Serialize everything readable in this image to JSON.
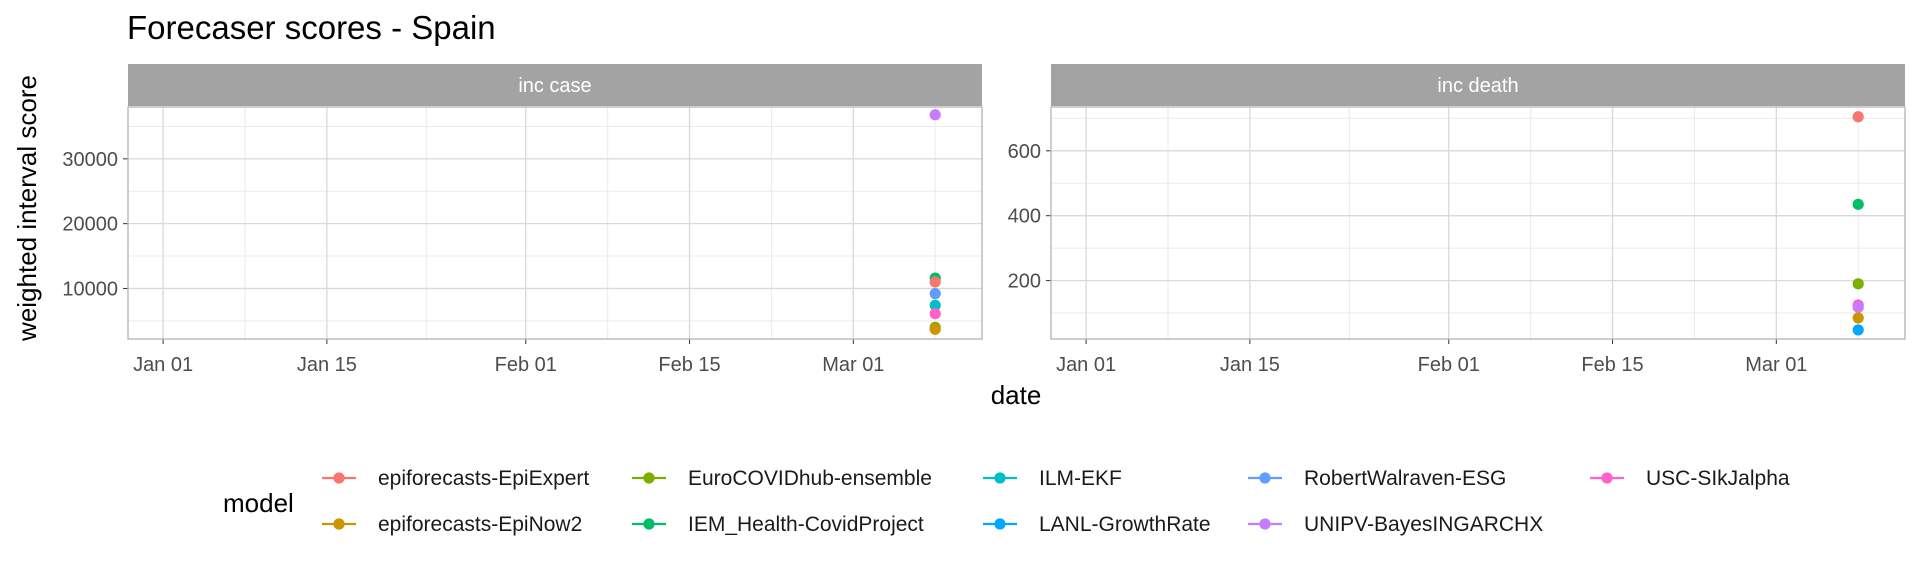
{
  "chart_data": {
    "type": "scatter",
    "title": "Forecaser scores - Spain",
    "xlabel": "date",
    "ylabel": "weighted interval score",
    "x_ticks": [
      "Jan 01",
      "Jan 15",
      "Feb 01",
      "Feb 15",
      "Mar 01"
    ],
    "x_range": [
      "2020-12-29",
      "2021-03-12"
    ],
    "grid": true,
    "legend": {
      "title": "model",
      "placement": "bottom",
      "entries": [
        {
          "name": "epiforecasts-EpiExpert",
          "color": "#F8766D"
        },
        {
          "name": "epiforecasts-EpiNow2",
          "color": "#CD9600"
        },
        {
          "name": "EuroCOVIDhub-ensemble",
          "color": "#7CAE00"
        },
        {
          "name": "IEM_Health-CovidProject",
          "color": "#00BE67"
        },
        {
          "name": "ILM-EKF",
          "color": "#00BFC4"
        },
        {
          "name": "LANL-GrowthRate",
          "color": "#00A9FF"
        },
        {
          "name": "RobertWalraven-ESG",
          "color": "#619CFF"
        },
        {
          "name": "UNIPV-BayesINGARCHX",
          "color": "#C77CFF"
        },
        {
          "name": "USC-SIkJalpha",
          "color": "#FF61CC"
        }
      ]
    },
    "panels": [
      {
        "strip": "inc case",
        "y_ticks": [
          10000,
          20000,
          30000
        ],
        "ylim": [
          2200,
          38000
        ],
        "points": [
          {
            "model": "UNIPV-BayesINGARCHX",
            "x": "2021-03-08",
            "y": 36800
          },
          {
            "model": "IEM_Health-CovidProject",
            "x": "2021-03-08",
            "y": 11600
          },
          {
            "model": "epiforecasts-EpiExpert",
            "x": "2021-03-08",
            "y": 11000
          },
          {
            "model": "RobertWalraven-ESG",
            "x": "2021-03-08",
            "y": 9200
          },
          {
            "model": "ILM-EKF",
            "x": "2021-03-08",
            "y": 7400
          },
          {
            "model": "USC-SIkJalpha",
            "x": "2021-03-08",
            "y": 6100
          },
          {
            "model": "EuroCOVIDhub-ensemble",
            "x": "2021-03-08",
            "y": 4000
          },
          {
            "model": "epiforecasts-EpiNow2",
            "x": "2021-03-08",
            "y": 3700
          }
        ]
      },
      {
        "strip": "inc death",
        "y_ticks": [
          200,
          400,
          600
        ],
        "ylim": [
          20,
          735
        ],
        "points": [
          {
            "model": "epiforecasts-EpiExpert",
            "x": "2021-03-08",
            "y": 705
          },
          {
            "model": "IEM_Health-CovidProject",
            "x": "2021-03-08",
            "y": 435
          },
          {
            "model": "EuroCOVIDhub-ensemble",
            "x": "2021-03-08",
            "y": 190
          },
          {
            "model": "USC-SIkJalpha",
            "x": "2021-03-08",
            "y": 125
          },
          {
            "model": "UNIPV-BayesINGARCHX",
            "x": "2021-03-08",
            "y": 118
          },
          {
            "model": "epiforecasts-EpiNow2",
            "x": "2021-03-08",
            "y": 85
          },
          {
            "model": "LANL-GrowthRate",
            "x": "2021-03-08",
            "y": 48
          }
        ]
      }
    ]
  }
}
